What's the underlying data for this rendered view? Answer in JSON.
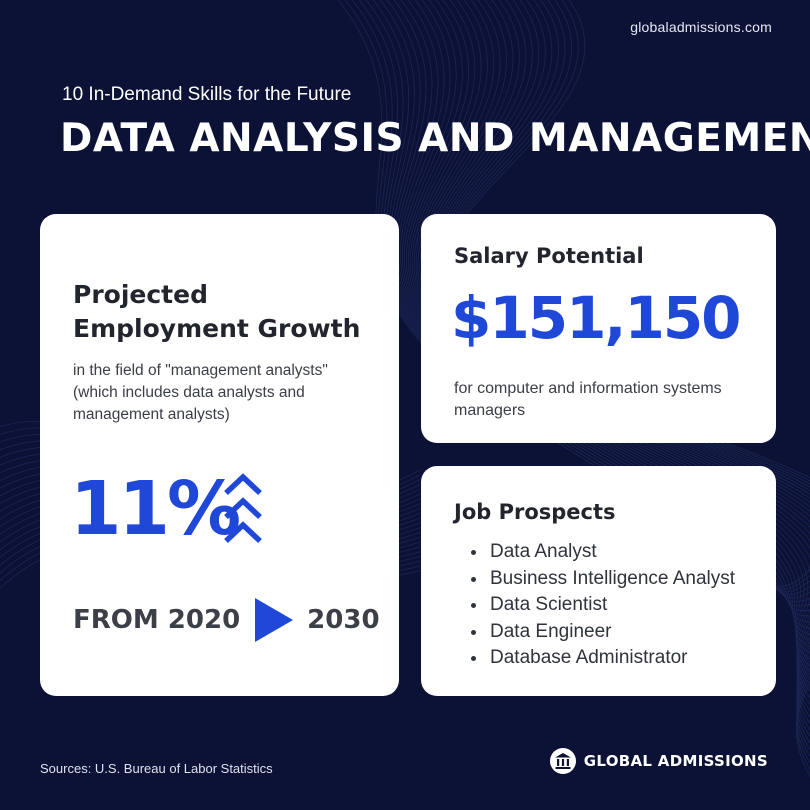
{
  "header": {
    "site_url": "globaladmissions.com",
    "eyebrow": "10 In-Demand Skills for the Future",
    "title": "DATA ANALYSIS AND MANAGEMENT"
  },
  "growth_card": {
    "heading": "Projected Employment Growth",
    "description": "in the field of \"management analysts\" (which includes data analysts and management analysts)",
    "value": "11%",
    "range_from": "FROM 2020",
    "range_to": "2030"
  },
  "salary_card": {
    "title": "Salary Potential",
    "value": "$151,150",
    "description": "for computer and information systems managers"
  },
  "jobs_card": {
    "title": "Job Prospects",
    "items": [
      "Data Analyst",
      "Business Intelligence Analyst",
      "Data Scientist",
      "Data Engineer",
      "Database Administrator"
    ]
  },
  "footer": {
    "sources": "Sources: U.S. Bureau of Labor Statistics",
    "brand_name": "GLOBAL ADMISSIONS",
    "brand_icon": "institution-icon"
  },
  "colors": {
    "background": "#0b1236",
    "accent": "#1f48d8",
    "card": "#ffffff"
  }
}
